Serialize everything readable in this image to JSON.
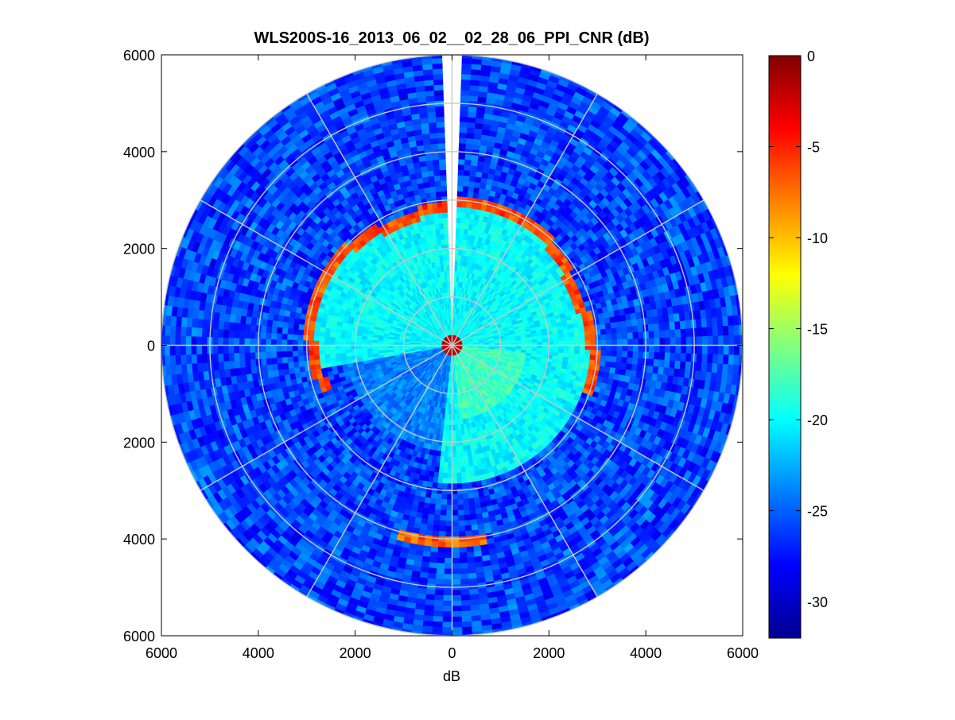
{
  "chart_data": {
    "type": "heatmap",
    "subtype": "polar-ppi",
    "title": "WLS200S-16_2013_06_02__02_28_06_PPI_CNR (dB)",
    "xlabel": "dB",
    "ylabel": "",
    "xlim": [
      -6000,
      6000
    ],
    "ylim": [
      -6000,
      6000
    ],
    "x_ticks": [
      -6000,
      -4000,
      -2000,
      0,
      2000,
      4000,
      6000
    ],
    "x_tick_labels": [
      "6000",
      "4000",
      "2000",
      "0",
      "2000",
      "4000",
      "6000"
    ],
    "y_ticks": [
      6000,
      4000,
      2000,
      0,
      -2000,
      -4000,
      -6000
    ],
    "y_tick_labels": [
      "6000",
      "4000",
      "2000",
      "0",
      "2000",
      "4000",
      "6000"
    ],
    "max_range": 6000,
    "range_rings": [
      1000,
      2000,
      3000,
      4000,
      5000,
      6000
    ],
    "spokes_deg": [
      0,
      30,
      60,
      90,
      120,
      150,
      180,
      210,
      240,
      270,
      300,
      330
    ],
    "colormap": "jet",
    "colorbar": {
      "min": -32,
      "max": 0,
      "ticks": [
        0,
        -5,
        -10,
        -15,
        -20,
        -25,
        -30
      ],
      "tick_labels": [
        "0",
        "-5",
        "-10",
        "-15",
        "-20",
        "-25",
        "-30"
      ]
    },
    "field_summary": {
      "far_background_dB": -26,
      "inner_disk_dB": -20,
      "inner_disk_radius": 2900,
      "strong_arc_dB": -4,
      "strong_arc_radius": 2900,
      "strong_arc_azimuth_deg": [
        250,
        110
      ],
      "south_arc_dB": -5,
      "south_arc_radius": 4100,
      "south_arc_azimuth_deg": [
        170,
        195
      ],
      "center_spot_dB": -2,
      "center_spot_radius": 200,
      "blocked_sector_azimuth_deg": [
        -1.5,
        1.5
      ]
    }
  }
}
